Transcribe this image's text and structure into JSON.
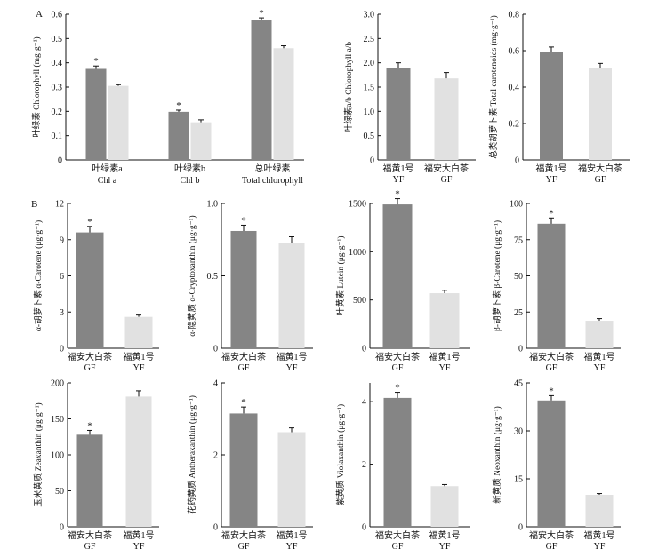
{
  "panel_letters": [
    "A",
    "B"
  ],
  "colors": {
    "dark_bar": "#858585",
    "light_bar": "#e1e1e1",
    "axis": "#111111"
  },
  "chart_data": [
    {
      "type": "bar",
      "ylabel": "叶绿素 Chlorophyll (mg·g⁻¹)",
      "ylim": [
        0,
        0.6
      ],
      "yticks": [
        "0",
        "0.1",
        "0.2",
        "0.3",
        "0.4",
        "0.5",
        "0.6"
      ],
      "groups": [
        {
          "label": [
            "叶绿素a",
            "Chl a"
          ],
          "values": [
            0.375,
            0.305
          ],
          "errors": [
            0.012,
            0.005
          ],
          "stars": [
            "*",
            ""
          ]
        },
        {
          "label": [
            "叶绿素b",
            "Chl b"
          ],
          "values": [
            0.198,
            0.155
          ],
          "errors": [
            0.007,
            0.01
          ],
          "stars": [
            "*",
            ""
          ]
        },
        {
          "label": [
            "总叶绿素",
            "Total chlorophyll"
          ],
          "values": [
            0.575,
            0.46
          ],
          "errors": [
            0.01,
            0.01
          ],
          "stars": [
            "*",
            ""
          ]
        }
      ]
    },
    {
      "type": "bar",
      "ylabel": "叶绿素a/b Chlorophyll a/b",
      "ylim": [
        0,
        3.0
      ],
      "yticks": [
        "0",
        "0.5",
        "1.0",
        "1.5",
        "2.0",
        "2.5",
        "3.0"
      ],
      "bars": [
        {
          "label": [
            "福黄1号",
            "YF"
          ],
          "value": 1.9,
          "error": 0.1,
          "star": "",
          "shade": "dark"
        },
        {
          "label": [
            "福安大白茶",
            "GF"
          ],
          "value": 1.68,
          "error": 0.12,
          "star": "",
          "shade": "light"
        }
      ]
    },
    {
      "type": "bar",
      "ylabel": "总类胡萝卜素 Total carotenoids (mg·g⁻¹)",
      "ylim": [
        0,
        0.8
      ],
      "yticks": [
        "0",
        "0.2",
        "0.4",
        "0.6",
        "0.8"
      ],
      "bars": [
        {
          "label": [
            "福黄1号",
            "YF"
          ],
          "value": 0.595,
          "error": 0.025,
          "star": "",
          "shade": "dark"
        },
        {
          "label": [
            "福安大白茶",
            "GF"
          ],
          "value": 0.505,
          "error": 0.025,
          "star": "",
          "shade": "light"
        }
      ]
    },
    {
      "type": "bar",
      "ylabel": "α-胡萝卜素 α-Carotene (μg·g⁻¹)",
      "ylim": [
        0,
        12
      ],
      "yticks": [
        "0",
        "3",
        "6",
        "9",
        "12"
      ],
      "bars": [
        {
          "label": [
            "福安大白茶",
            "GF"
          ],
          "value": 9.6,
          "error": 0.5,
          "star": "*",
          "shade": "dark"
        },
        {
          "label": [
            "福黄1号",
            "YF"
          ],
          "value": 2.6,
          "error": 0.15,
          "star": "",
          "shade": "light"
        }
      ]
    },
    {
      "type": "bar",
      "ylabel": "α-隐黄质 α-Cryptoxanthin (μg·g⁻¹)",
      "ylim": [
        0,
        1.0
      ],
      "yticks": [
        "0",
        "0.5",
        "1.0"
      ],
      "bars": [
        {
          "label": [
            "福安大白茶",
            "GF"
          ],
          "value": 0.81,
          "error": 0.04,
          "star": "*",
          "shade": "dark"
        },
        {
          "label": [
            "福黄1号",
            "YF"
          ],
          "value": 0.73,
          "error": 0.04,
          "star": "",
          "shade": "light"
        }
      ]
    },
    {
      "type": "bar",
      "ylabel": "叶黄素 Lutein (μg·g⁻¹)",
      "ylim": [
        0,
        1500
      ],
      "yticks": [
        "0",
        "500",
        "1000",
        "1500"
      ],
      "bars": [
        {
          "label": [
            "福安大白茶",
            "GF"
          ],
          "value": 1490,
          "error": 60,
          "star": "*",
          "shade": "dark"
        },
        {
          "label": [
            "福黄1号",
            "YF"
          ],
          "value": 570,
          "error": 30,
          "star": "",
          "shade": "light"
        }
      ]
    },
    {
      "type": "bar",
      "ylabel": "β-胡萝卜素 β-Carotene (μg·g⁻¹)",
      "ylim": [
        0,
        100
      ],
      "yticks": [
        "0",
        "25",
        "50",
        "75",
        "100"
      ],
      "bars": [
        {
          "label": [
            "福安大白茶",
            "GF"
          ],
          "value": 86,
          "error": 4,
          "star": "*",
          "shade": "dark"
        },
        {
          "label": [
            "福黄1号",
            "YF"
          ],
          "value": 19,
          "error": 1.5,
          "star": "",
          "shade": "light"
        }
      ]
    },
    {
      "type": "bar",
      "ylabel": "玉米黄质 Zeaxanthin (μg·g⁻¹)",
      "ylim": [
        0,
        200
      ],
      "yticks": [
        "0",
        "50",
        "100",
        "150",
        "200"
      ],
      "bars": [
        {
          "label": [
            "福安大白茶",
            "GF"
          ],
          "value": 128,
          "error": 6,
          "star": "*",
          "shade": "dark"
        },
        {
          "label": [
            "福黄1号",
            "YF"
          ],
          "value": 181,
          "error": 8,
          "star": "",
          "shade": "light"
        }
      ]
    },
    {
      "type": "bar",
      "ylabel": "花药黄质 Antheraxanthin (μg·g⁻¹)",
      "ylim": [
        0,
        4
      ],
      "yticks": [
        "0",
        "2",
        "4"
      ],
      "bars": [
        {
          "label": [
            "福安大白茶",
            "GF"
          ],
          "value": 3.15,
          "error": 0.18,
          "star": "*",
          "shade": "dark"
        },
        {
          "label": [
            "福黄1号",
            "YF"
          ],
          "value": 2.63,
          "error": 0.12,
          "star": "",
          "shade": "light"
        }
      ]
    },
    {
      "type": "bar",
      "ylabel": "紫黄质 Violaxanthin (μg·g⁻¹)",
      "ylim": [
        0,
        4.6
      ],
      "yticks": [
        "0",
        "2",
        "4"
      ],
      "bars": [
        {
          "label": [
            "福安大白茶",
            "GF"
          ],
          "value": 4.12,
          "error": 0.18,
          "star": "*",
          "shade": "dark"
        },
        {
          "label": [
            "福黄1号",
            "YF"
          ],
          "value": 1.3,
          "error": 0.05,
          "star": "",
          "shade": "light"
        }
      ]
    },
    {
      "type": "bar",
      "ylabel": "新黄质 Neoxanthin (μg·g⁻¹)",
      "ylim": [
        0,
        45
      ],
      "yticks": [
        "0",
        "15",
        "30",
        "45"
      ],
      "bars": [
        {
          "label": [
            "福安大白茶",
            "GF"
          ],
          "value": 39.5,
          "error": 1.5,
          "star": "*",
          "shade": "dark"
        },
        {
          "label": [
            "福黄1号",
            "YF"
          ],
          "value": 10.0,
          "error": 0.4,
          "star": "",
          "shade": "light"
        }
      ]
    }
  ]
}
